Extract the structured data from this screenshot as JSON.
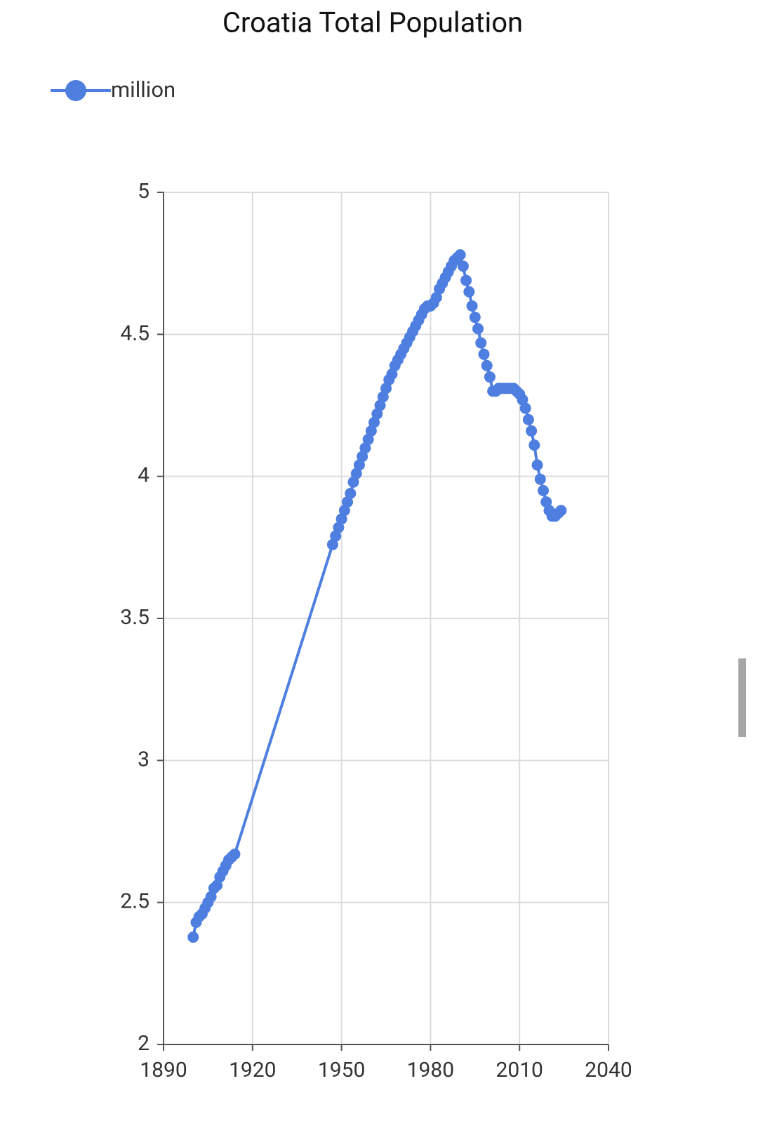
{
  "chart_data": {
    "type": "line",
    "title": "Croatia Total Population",
    "x": [
      1900,
      1901,
      1902,
      1903,
      1904,
      1905,
      1906,
      1907,
      1908,
      1909,
      1910,
      1911,
      1912,
      1913,
      1914,
      1947,
      1948,
      1949,
      1950,
      1951,
      1952,
      1953,
      1954,
      1955,
      1956,
      1957,
      1958,
      1959,
      1960,
      1961,
      1962,
      1963,
      1964,
      1965,
      1966,
      1967,
      1968,
      1969,
      1970,
      1971,
      1972,
      1973,
      1974,
      1975,
      1976,
      1977,
      1978,
      1979,
      1980,
      1981,
      1982,
      1983,
      1984,
      1985,
      1986,
      1987,
      1988,
      1989,
      1990,
      1991,
      1992,
      1993,
      1994,
      1995,
      1996,
      1997,
      1998,
      1999,
      2000,
      2001,
      2002,
      2003,
      2004,
      2005,
      2006,
      2007,
      2008,
      2009,
      2010,
      2011,
      2012,
      2013,
      2014,
      2015,
      2016,
      2017,
      2018,
      2019,
      2020,
      2021,
      2022,
      2023,
      2024
    ],
    "series": [
      {
        "name": "million",
        "color": "#4e7fe0",
        "values": [
          2.378,
          2.43,
          2.45,
          2.46,
          2.48,
          2.5,
          2.52,
          2.55,
          2.56,
          2.59,
          2.61,
          2.63,
          2.65,
          2.66,
          2.67,
          3.76,
          3.79,
          3.82,
          3.85,
          3.88,
          3.91,
          3.94,
          3.98,
          4.01,
          4.04,
          4.07,
          4.1,
          4.13,
          4.16,
          4.19,
          4.22,
          4.25,
          4.28,
          4.31,
          4.34,
          4.36,
          4.39,
          4.41,
          4.43,
          4.45,
          4.47,
          4.49,
          4.51,
          4.53,
          4.55,
          4.57,
          4.59,
          4.6,
          4.6,
          4.61,
          4.63,
          4.66,
          4.68,
          4.7,
          4.72,
          4.74,
          4.76,
          4.77,
          4.78,
          4.74,
          4.69,
          4.65,
          4.6,
          4.56,
          4.52,
          4.47,
          4.43,
          4.39,
          4.35,
          4.3,
          4.3,
          4.31,
          4.31,
          4.31,
          4.31,
          4.31,
          4.31,
          4.3,
          4.29,
          4.27,
          4.24,
          4.2,
          4.16,
          4.11,
          4.04,
          3.99,
          3.95,
          3.91,
          3.88,
          3.86,
          3.86,
          3.87,
          3.88
        ]
      }
    ],
    "xlim": [
      1890,
      2040
    ],
    "xticks": [
      1890,
      1920,
      1950,
      1980,
      2010,
      2040
    ],
    "ylim": [
      2,
      5
    ],
    "yticks": [
      2,
      2.5,
      3,
      3.5,
      4,
      4.5,
      5
    ],
    "grid": true
  }
}
